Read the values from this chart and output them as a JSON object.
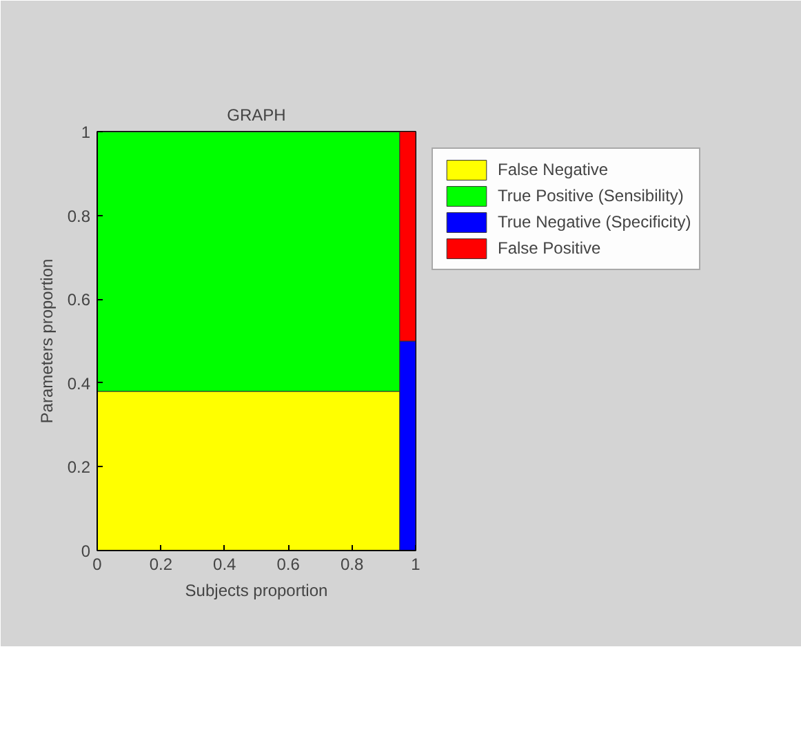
{
  "chart_data": {
    "type": "bar",
    "stacked": true,
    "title": "GRAPH",
    "xlabel": "Subjects proportion",
    "ylabel": "Parameters proportion",
    "x": [
      0.475,
      0.975
    ],
    "series": [
      {
        "name": "False Negative",
        "color": "#ffff00",
        "values": [
          0.38,
          0
        ]
      },
      {
        "name": "True Positive (Sensibility)",
        "color": "#00ff00",
        "values": [
          0.62,
          0
        ]
      },
      {
        "name": "True Negative (Specificity)",
        "color": "#0000ff",
        "values": [
          0,
          0.5
        ]
      },
      {
        "name": "False Positive",
        "color": "#ff0000",
        "values": [
          0,
          0.5
        ]
      }
    ],
    "xlim": [
      0,
      1
    ],
    "ylim": [
      0,
      1
    ],
    "xticks": [
      0,
      0.2,
      0.4,
      0.6,
      0.8,
      1
    ],
    "yticks": [
      0,
      0.2,
      0.4,
      0.6,
      0.8,
      1
    ],
    "legend": "right"
  }
}
